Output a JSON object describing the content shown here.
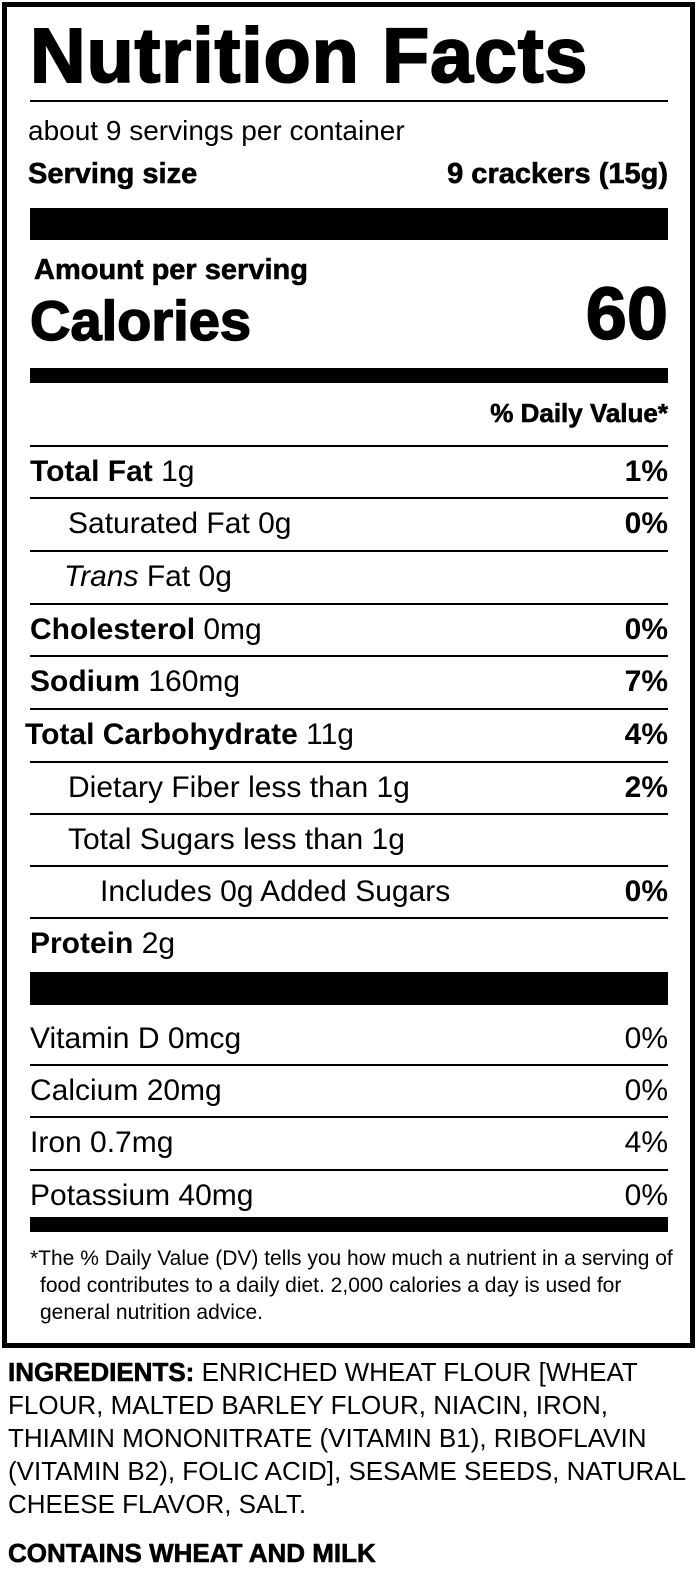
{
  "title": "Nutrition Facts",
  "servings_per_container": "about 9 servings per container",
  "serving_size": {
    "label": "Serving size",
    "value": "9 crackers (15g)"
  },
  "amount_per_serving": "Amount per serving",
  "calories": {
    "label": "Calories",
    "value": "60"
  },
  "daily_value_header": "% Daily Value*",
  "nutrients": [
    {
      "name": "Total Fat",
      "amount": "1g",
      "dv": "1%"
    },
    {
      "name": "Saturated Fat",
      "amount": "0g",
      "dv": "0%"
    },
    {
      "name": "Trans",
      "name_suffix": "Fat",
      "amount": "0g",
      "dv": ""
    },
    {
      "name": "Cholesterol",
      "amount": "0mg",
      "dv": "0%"
    },
    {
      "name": "Sodium",
      "amount": "160mg",
      "dv": "7%"
    },
    {
      "name": "Total Carbohydrate",
      "amount": "11g",
      "dv": "4%"
    },
    {
      "name": "Dietary Fiber",
      "amount": "less than 1g",
      "dv": "2%"
    },
    {
      "name": "Total Sugars",
      "amount": "less than 1g",
      "dv": ""
    },
    {
      "name": "Includes 0g Added Sugars",
      "amount": "",
      "dv": "0%"
    },
    {
      "name": "Protein",
      "amount": "2g",
      "dv": ""
    }
  ],
  "vitamins": [
    {
      "label": "Vitamin D 0mcg",
      "dv": "0%"
    },
    {
      "label": "Calcium 20mg",
      "dv": "0%"
    },
    {
      "label": "Iron 0.7mg",
      "dv": "4%"
    },
    {
      "label": "Potassium 40mg",
      "dv": "0%"
    }
  ],
  "footnote": "*The % Daily Value (DV) tells you how much a nutrient in a serving of food contributes to a daily diet. 2,000 calories a day is used for general nutrition advice.",
  "ingredients": {
    "label": "INGREDIENTS:",
    "text": "ENRICHED WHEAT FLOUR [WHEAT FLOUR, MALTED BARLEY FLOUR, NIACIN, IRON, THIAMIN MONONITRATE (VITAMIN B1), RIBOFLAVIN (VITAMIN B2), FOLIC ACID], SESAME SEEDS, NATURAL CHEESE FLAVOR, SALT."
  },
  "allergens": "CONTAINS WHEAT AND MILK"
}
